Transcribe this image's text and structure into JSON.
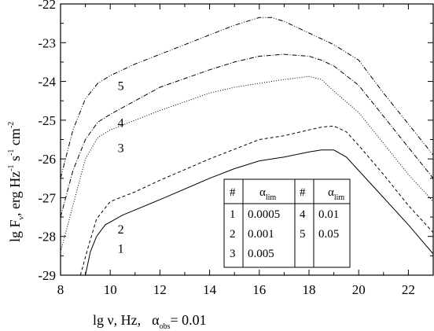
{
  "chart_data": {
    "type": "line",
    "xlabel": {
      "main": "lg ν, Hz,",
      "alpha": "α",
      "alpha_sub": "obs",
      "tail": "= 0.01"
    },
    "ylabel": {
      "p1": "lg F",
      "p1_sub": "ν",
      "p2": ", erg Hz",
      "p2_sup": "-1",
      "p3": " s",
      "p3_sup": "-1",
      "p4": " cm",
      "p4_sup": "-2"
    },
    "xlim": [
      8,
      23
    ],
    "ylim": [
      -29,
      -22
    ],
    "x_ticks": [
      8,
      10,
      12,
      14,
      16,
      18,
      20,
      22
    ],
    "y_ticks": [
      -29,
      -28,
      -27,
      -26,
      -25,
      -24,
      -23,
      -22
    ],
    "grid": false,
    "series": [
      {
        "name": "1",
        "style": "solid",
        "points": [
          [
            9.0,
            -29.0
          ],
          [
            9.2,
            -28.4
          ],
          [
            9.45,
            -28.0
          ],
          [
            9.8,
            -27.7
          ],
          [
            10.5,
            -27.45
          ],
          [
            12,
            -27.05
          ],
          [
            14,
            -26.5
          ],
          [
            15,
            -26.25
          ],
          [
            16,
            -26.05
          ],
          [
            17,
            -25.95
          ],
          [
            18,
            -25.82
          ],
          [
            18.5,
            -25.77
          ],
          [
            19,
            -25.77
          ],
          [
            19.5,
            -25.95
          ],
          [
            20,
            -26.3
          ],
          [
            21,
            -27.0
          ],
          [
            22,
            -27.7
          ],
          [
            23,
            -28.45
          ]
        ]
      },
      {
        "name": "2",
        "style": "dashed",
        "points": [
          [
            8.8,
            -29.0
          ],
          [
            9.1,
            -28.3
          ],
          [
            9.45,
            -27.55
          ],
          [
            10,
            -27.1
          ],
          [
            11,
            -26.85
          ],
          [
            12,
            -26.55
          ],
          [
            14,
            -26.0
          ],
          [
            15,
            -25.75
          ],
          [
            16,
            -25.5
          ],
          [
            17,
            -25.4
          ],
          [
            18,
            -25.25
          ],
          [
            18.5,
            -25.18
          ],
          [
            19,
            -25.15
          ],
          [
            19.5,
            -25.3
          ],
          [
            20,
            -25.65
          ],
          [
            21,
            -26.4
          ],
          [
            22,
            -27.2
          ],
          [
            23,
            -27.9
          ]
        ]
      },
      {
        "name": "3",
        "style": "dotted",
        "points": [
          [
            8,
            -28.4
          ],
          [
            8.5,
            -27.2
          ],
          [
            9,
            -26.0
          ],
          [
            9.5,
            -25.45
          ],
          [
            10,
            -25.25
          ],
          [
            11,
            -25.0
          ],
          [
            12,
            -24.75
          ],
          [
            14,
            -24.3
          ],
          [
            15,
            -24.15
          ],
          [
            16,
            -24.05
          ],
          [
            17,
            -23.95
          ],
          [
            18,
            -23.87
          ],
          [
            18.5,
            -23.95
          ],
          [
            19,
            -24.25
          ],
          [
            20,
            -24.8
          ],
          [
            21,
            -25.6
          ],
          [
            22,
            -26.4
          ],
          [
            23,
            -27.1
          ]
        ]
      },
      {
        "name": "4",
        "style": "dashdot",
        "points": [
          [
            8,
            -27.5
          ],
          [
            8.5,
            -26.3
          ],
          [
            9,
            -25.5
          ],
          [
            9.5,
            -25.05
          ],
          [
            10,
            -24.85
          ],
          [
            11,
            -24.5
          ],
          [
            12,
            -24.15
          ],
          [
            14,
            -23.7
          ],
          [
            15,
            -23.5
          ],
          [
            16,
            -23.35
          ],
          [
            17,
            -23.3
          ],
          [
            18,
            -23.35
          ],
          [
            18.5,
            -23.45
          ],
          [
            19,
            -23.6
          ],
          [
            20,
            -24.1
          ],
          [
            21,
            -24.9
          ],
          [
            22,
            -25.7
          ],
          [
            23,
            -26.5
          ]
        ]
      },
      {
        "name": "5",
        "style": "dashdotdot",
        "points": [
          [
            8,
            -26.5
          ],
          [
            8.5,
            -25.25
          ],
          [
            9,
            -24.45
          ],
          [
            9.5,
            -24.05
          ],
          [
            10,
            -23.85
          ],
          [
            11,
            -23.55
          ],
          [
            12,
            -23.3
          ],
          [
            13,
            -23.05
          ],
          [
            14,
            -22.8
          ],
          [
            15,
            -22.55
          ],
          [
            15.5,
            -22.45
          ],
          [
            16,
            -22.35
          ],
          [
            16.5,
            -22.35
          ],
          [
            17,
            -22.45
          ],
          [
            18,
            -22.75
          ],
          [
            19,
            -23.05
          ],
          [
            20,
            -23.45
          ],
          [
            21,
            -24.3
          ],
          [
            22,
            -25.1
          ],
          [
            23,
            -25.9
          ]
        ]
      }
    ],
    "curve_labels": [
      {
        "text": "1",
        "x": 10.3,
        "y": -28.3
      },
      {
        "text": "2",
        "x": 10.3,
        "y": -27.8
      },
      {
        "text": "3",
        "x": 10.3,
        "y": -25.7
      },
      {
        "text": "4",
        "x": 10.3,
        "y": -25.05
      },
      {
        "text": "5",
        "x": 10.3,
        "y": -24.1
      }
    ],
    "legend_table": {
      "headers": [
        "#",
        "α",
        "#",
        "α"
      ],
      "header_sub": "lim",
      "rows": [
        [
          "1",
          "0.0005",
          "4",
          "0.01"
        ],
        [
          "2",
          "0.001",
          "5",
          "0.05"
        ],
        [
          "3",
          "0.005",
          "",
          ""
        ]
      ]
    }
  }
}
